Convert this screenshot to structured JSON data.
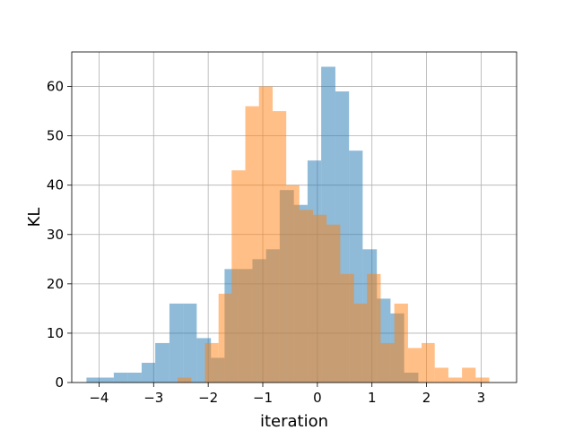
{
  "chart_data": {
    "type": "bar",
    "title": "",
    "xlabel": "iteration",
    "ylabel": "KL",
    "xlim": [
      -4.5,
      3.65
    ],
    "ylim": [
      0,
      67
    ],
    "xticks": [
      -4,
      -3,
      -2,
      -1,
      0,
      1,
      2,
      3
    ],
    "xtick_labels": [
      "−4",
      "−3",
      "−2",
      "−1",
      "0",
      "1",
      "2",
      "3"
    ],
    "yticks": [
      0,
      10,
      20,
      30,
      40,
      50,
      60
    ],
    "ytick_labels": [
      "0",
      "10",
      "20",
      "30",
      "40",
      "50",
      "60"
    ],
    "grid": true,
    "series": [
      {
        "color": "#1f77b4",
        "opacity": 0.5,
        "bin_edges": [
          -4.23,
          -3.98,
          -3.73,
          -3.47,
          -3.22,
          -2.97,
          -2.71,
          -2.46,
          -2.21,
          -1.95,
          -1.7,
          -1.45,
          -1.19,
          -0.94,
          -0.69,
          -0.43,
          -0.18,
          0.07,
          0.33,
          0.58,
          0.83,
          1.09,
          1.34,
          1.59,
          1.85
        ],
        "values": [
          1,
          1,
          2,
          2,
          4,
          8,
          16,
          16,
          9,
          5,
          23,
          23,
          25,
          27,
          39,
          36,
          45,
          64,
          59,
          47,
          27,
          17,
          14,
          2
        ]
      },
      {
        "color": "#ff7f0e",
        "opacity": 0.5,
        "bin_edges": [
          -2.56,
          -2.31,
          -2.06,
          -1.81,
          -1.57,
          -1.32,
          -1.07,
          -0.82,
          -0.57,
          -0.33,
          -0.08,
          0.17,
          0.42,
          0.67,
          0.91,
          1.16,
          1.41,
          1.66,
          1.91,
          2.15,
          2.4,
          2.65,
          2.9,
          3.15
        ],
        "values": [
          1,
          0,
          8,
          18,
          43,
          56,
          60,
          55,
          40,
          35,
          34,
          32,
          22,
          16,
          22,
          8,
          16,
          7,
          8,
          3,
          1,
          3,
          1
        ]
      }
    ]
  }
}
